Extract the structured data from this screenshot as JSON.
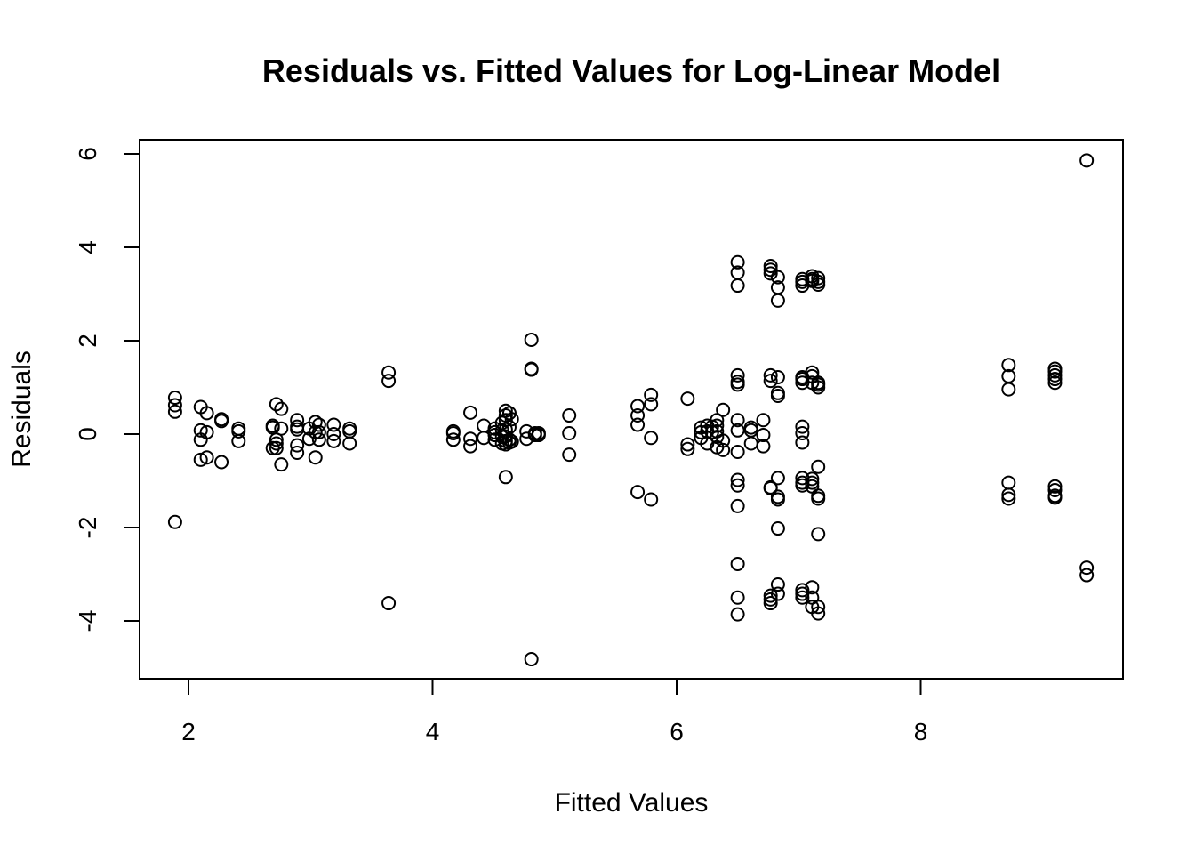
{
  "chart_data": {
    "type": "scatter",
    "title": "Residuals vs. Fitted Values for Log-Linear Model",
    "xlabel": "Fitted Values",
    "ylabel": "Residuals",
    "xlim": [
      1.6,
      9.6
    ],
    "ylim": [
      -5.2,
      6.3
    ],
    "xticks": [
      2,
      4,
      6,
      8
    ],
    "yticks": [
      -4,
      -2,
      0,
      2,
      4,
      6
    ],
    "xtick_labels": [
      "2",
      "4",
      "6",
      "8"
    ],
    "ytick_labels": [
      "-4",
      "-2",
      "0",
      "2",
      "4",
      "6"
    ],
    "grid": false,
    "marker": "open-circle",
    "points": [
      [
        1.89,
        0.78
      ],
      [
        1.89,
        0.62
      ],
      [
        1.89,
        0.48
      ],
      [
        1.89,
        -1.88
      ],
      [
        2.1,
        0.58
      ],
      [
        2.1,
        0.08
      ],
      [
        2.1,
        -0.12
      ],
      [
        2.1,
        -0.55
      ],
      [
        2.15,
        0.45
      ],
      [
        2.15,
        0.04
      ],
      [
        2.15,
        -0.5
      ],
      [
        2.27,
        0.32
      ],
      [
        2.27,
        0.28
      ],
      [
        2.27,
        -0.6
      ],
      [
        2.41,
        0.12
      ],
      [
        2.41,
        0.06
      ],
      [
        2.41,
        -0.15
      ],
      [
        2.69,
        0.18
      ],
      [
        2.69,
        0.14
      ],
      [
        2.69,
        -0.3
      ],
      [
        2.72,
        0.64
      ],
      [
        2.72,
        -0.12
      ],
      [
        2.72,
        -0.2
      ],
      [
        2.72,
        -0.3
      ],
      [
        2.76,
        0.54
      ],
      [
        2.76,
        0.12
      ],
      [
        2.76,
        -0.65
      ],
      [
        2.89,
        0.3
      ],
      [
        2.89,
        0.16
      ],
      [
        2.89,
        0.1
      ],
      [
        2.89,
        -0.24
      ],
      [
        2.89,
        -0.4
      ],
      [
        2.99,
        0.12
      ],
      [
        2.99,
        -0.1
      ],
      [
        3.04,
        0.26
      ],
      [
        3.04,
        0.04
      ],
      [
        3.04,
        -0.5
      ],
      [
        3.07,
        0.2
      ],
      [
        3.07,
        0.04
      ],
      [
        3.07,
        -0.12
      ],
      [
        3.19,
        0.2
      ],
      [
        3.19,
        0.0
      ],
      [
        3.19,
        -0.15
      ],
      [
        3.32,
        0.12
      ],
      [
        3.32,
        0.06
      ],
      [
        3.32,
        -0.2
      ],
      [
        3.64,
        1.32
      ],
      [
        3.64,
        1.14
      ],
      [
        3.64,
        -3.62
      ],
      [
        4.17,
        0.06
      ],
      [
        4.17,
        0.02
      ],
      [
        4.17,
        -0.12
      ],
      [
        4.31,
        0.46
      ],
      [
        4.31,
        -0.1
      ],
      [
        4.31,
        -0.26
      ],
      [
        4.42,
        0.18
      ],
      [
        4.42,
        -0.08
      ],
      [
        4.51,
        0.12
      ],
      [
        4.51,
        0.04
      ],
      [
        4.51,
        -0.02
      ],
      [
        4.51,
        -0.12
      ],
      [
        4.57,
        0.24
      ],
      [
        4.57,
        0.08
      ],
      [
        4.57,
        -0.06
      ],
      [
        4.57,
        -0.2
      ],
      [
        4.6,
        0.5
      ],
      [
        4.6,
        0.4
      ],
      [
        4.6,
        0.3
      ],
      [
        4.6,
        0.1
      ],
      [
        4.6,
        -0.05
      ],
      [
        4.6,
        -0.15
      ],
      [
        4.6,
        -0.22
      ],
      [
        4.6,
        -0.92
      ],
      [
        4.63,
        0.45
      ],
      [
        4.63,
        0.15
      ],
      [
        4.63,
        -0.12
      ],
      [
        4.63,
        -0.18
      ],
      [
        4.65,
        0.32
      ],
      [
        4.65,
        -0.16
      ],
      [
        4.77,
        0.06
      ],
      [
        4.77,
        -0.1
      ],
      [
        4.81,
        2.02
      ],
      [
        4.81,
        1.4
      ],
      [
        4.81,
        1.38
      ],
      [
        4.81,
        -4.82
      ],
      [
        4.84,
        0.02
      ],
      [
        4.84,
        -0.02
      ],
      [
        4.87,
        0.02
      ],
      [
        4.87,
        -0.02
      ],
      [
        5.12,
        0.4
      ],
      [
        5.12,
        0.02
      ],
      [
        5.12,
        -0.44
      ],
      [
        5.68,
        0.6
      ],
      [
        5.68,
        0.4
      ],
      [
        5.68,
        0.2
      ],
      [
        5.68,
        -1.24
      ],
      [
        5.79,
        0.84
      ],
      [
        5.79,
        0.64
      ],
      [
        5.79,
        -0.08
      ],
      [
        5.79,
        -1.4
      ],
      [
        6.09,
        0.76
      ],
      [
        6.09,
        -0.22
      ],
      [
        6.09,
        -0.32
      ],
      [
        6.2,
        0.14
      ],
      [
        6.2,
        0.04
      ],
      [
        6.2,
        -0.08
      ],
      [
        6.25,
        0.18
      ],
      [
        6.25,
        0.06
      ],
      [
        6.25,
        -0.2
      ],
      [
        6.29,
        0.16
      ],
      [
        6.29,
        0.04
      ],
      [
        6.33,
        0.3
      ],
      [
        6.33,
        0.18
      ],
      [
        6.33,
        0.06
      ],
      [
        6.33,
        -0.06
      ],
      [
        6.33,
        -0.28
      ],
      [
        6.38,
        0.52
      ],
      [
        6.38,
        -0.14
      ],
      [
        6.38,
        -0.34
      ],
      [
        6.5,
        3.68
      ],
      [
        6.5,
        3.46
      ],
      [
        6.5,
        3.18
      ],
      [
        6.5,
        1.26
      ],
      [
        6.5,
        1.12
      ],
      [
        6.5,
        1.06
      ],
      [
        6.5,
        0.3
      ],
      [
        6.5,
        0.08
      ],
      [
        6.5,
        -0.38
      ],
      [
        6.5,
        -0.98
      ],
      [
        6.5,
        -1.1
      ],
      [
        6.5,
        -1.54
      ],
      [
        6.5,
        -2.78
      ],
      [
        6.5,
        -3.5
      ],
      [
        6.5,
        -3.86
      ],
      [
        6.61,
        0.14
      ],
      [
        6.61,
        0.08
      ],
      [
        6.61,
        -0.2
      ],
      [
        6.71,
        0.3
      ],
      [
        6.71,
        -0.02
      ],
      [
        6.71,
        -0.26
      ],
      [
        6.77,
        3.6
      ],
      [
        6.77,
        3.52
      ],
      [
        6.77,
        3.44
      ],
      [
        6.77,
        1.26
      ],
      [
        6.77,
        1.14
      ],
      [
        6.77,
        -1.14
      ],
      [
        6.77,
        -1.16
      ],
      [
        6.77,
        -3.46
      ],
      [
        6.77,
        -3.54
      ],
      [
        6.77,
        -3.62
      ],
      [
        6.83,
        3.36
      ],
      [
        6.83,
        3.14
      ],
      [
        6.83,
        2.86
      ],
      [
        6.83,
        1.22
      ],
      [
        6.83,
        0.88
      ],
      [
        6.83,
        0.82
      ],
      [
        6.83,
        -0.94
      ],
      [
        6.83,
        -1.34
      ],
      [
        6.83,
        -1.4
      ],
      [
        6.83,
        -2.02
      ],
      [
        6.83,
        -3.22
      ],
      [
        6.83,
        -3.42
      ],
      [
        7.03,
        3.32
      ],
      [
        7.03,
        3.26
      ],
      [
        7.03,
        3.18
      ],
      [
        7.03,
        1.22
      ],
      [
        7.03,
        1.18
      ],
      [
        7.03,
        1.1
      ],
      [
        7.03,
        0.16
      ],
      [
        7.03,
        0.02
      ],
      [
        7.03,
        -0.18
      ],
      [
        7.03,
        -0.94
      ],
      [
        7.03,
        -1.04
      ],
      [
        7.03,
        -1.1
      ],
      [
        7.03,
        -3.34
      ],
      [
        7.03,
        -3.42
      ],
      [
        7.03,
        -3.5
      ],
      [
        7.11,
        3.38
      ],
      [
        7.11,
        3.32
      ],
      [
        7.11,
        3.28
      ],
      [
        7.11,
        1.32
      ],
      [
        7.11,
        1.24
      ],
      [
        7.11,
        1.1
      ],
      [
        7.11,
        -0.96
      ],
      [
        7.11,
        -1.04
      ],
      [
        7.11,
        -1.12
      ],
      [
        7.11,
        -3.28
      ],
      [
        7.11,
        -3.5
      ],
      [
        7.11,
        -3.7
      ],
      [
        7.16,
        3.34
      ],
      [
        7.16,
        3.26
      ],
      [
        7.16,
        3.2
      ],
      [
        7.16,
        1.1
      ],
      [
        7.16,
        1.06
      ],
      [
        7.16,
        1.0
      ],
      [
        7.16,
        -0.7
      ],
      [
        7.16,
        -1.32
      ],
      [
        7.16,
        -1.38
      ],
      [
        7.16,
        -2.14
      ],
      [
        7.16,
        -3.7
      ],
      [
        7.16,
        -3.84
      ],
      [
        8.72,
        1.48
      ],
      [
        8.72,
        1.24
      ],
      [
        8.72,
        0.96
      ],
      [
        8.72,
        -1.04
      ],
      [
        8.72,
        -1.3
      ],
      [
        8.72,
        -1.38
      ],
      [
        9.1,
        1.4
      ],
      [
        9.1,
        1.34
      ],
      [
        9.1,
        1.26
      ],
      [
        9.1,
        1.18
      ],
      [
        9.1,
        1.1
      ],
      [
        9.1,
        -1.12
      ],
      [
        9.1,
        -1.2
      ],
      [
        9.1,
        -1.32
      ],
      [
        9.1,
        -1.36
      ],
      [
        9.36,
        5.86
      ],
      [
        9.36,
        -2.86
      ],
      [
        9.36,
        -3.02
      ]
    ]
  }
}
